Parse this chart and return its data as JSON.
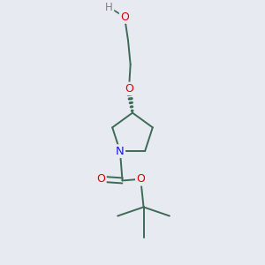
{
  "bg_color": "#e8eaf2",
  "bond_color": "#3d6b55",
  "atom_colors": {
    "O": "#e00000",
    "N": "#1a1aee",
    "H": "#808080",
    "C": "#3d6b55"
  },
  "bond_width": 1.4,
  "figsize": [
    3.0,
    3.0
  ],
  "dpi": 100,
  "font_size": 9.0,
  "xlim": [
    2.0,
    8.0
  ],
  "ylim": [
    0.5,
    9.5
  ]
}
